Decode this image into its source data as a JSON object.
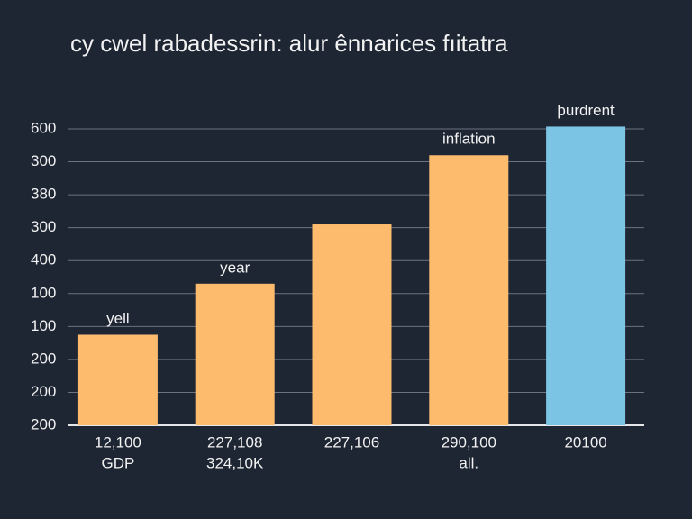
{
  "chart_data": {
    "type": "bar",
    "title": "cy cwel rabadessrin: alur ênnarices fıitatra",
    "categories": [
      [
        "12,100",
        "GDP"
      ],
      [
        "227,108",
        "324,10K"
      ],
      [
        "227,106"
      ],
      [
        "290,100",
        "all."
      ],
      [
        "20100"
      ]
    ],
    "values": [
      2.75,
      4.3,
      6.1,
      8.2,
      9.07
    ],
    "bar_labels": [
      "yell",
      "year",
      null,
      "inflation",
      "þurdrent"
    ],
    "colors": [
      "#fdbb6e",
      "#fdbb6e",
      "#fdbb6e",
      "#fdbb6e",
      "#7cc4e4"
    ],
    "ylim": [
      0,
      9.2
    ],
    "yticks": [
      {
        "value": 0,
        "label": "200"
      },
      {
        "value": 1,
        "label": "200"
      },
      {
        "value": 2,
        "label": "200"
      },
      {
        "value": 3,
        "label": "100"
      },
      {
        "value": 4,
        "label": "100"
      },
      {
        "value": 5,
        "label": "400"
      },
      {
        "value": 6,
        "label": "300"
      },
      {
        "value": 7,
        "label": "380"
      },
      {
        "value": 8,
        "label": "300"
      },
      {
        "value": 9,
        "label": "600"
      }
    ],
    "grid": true
  }
}
